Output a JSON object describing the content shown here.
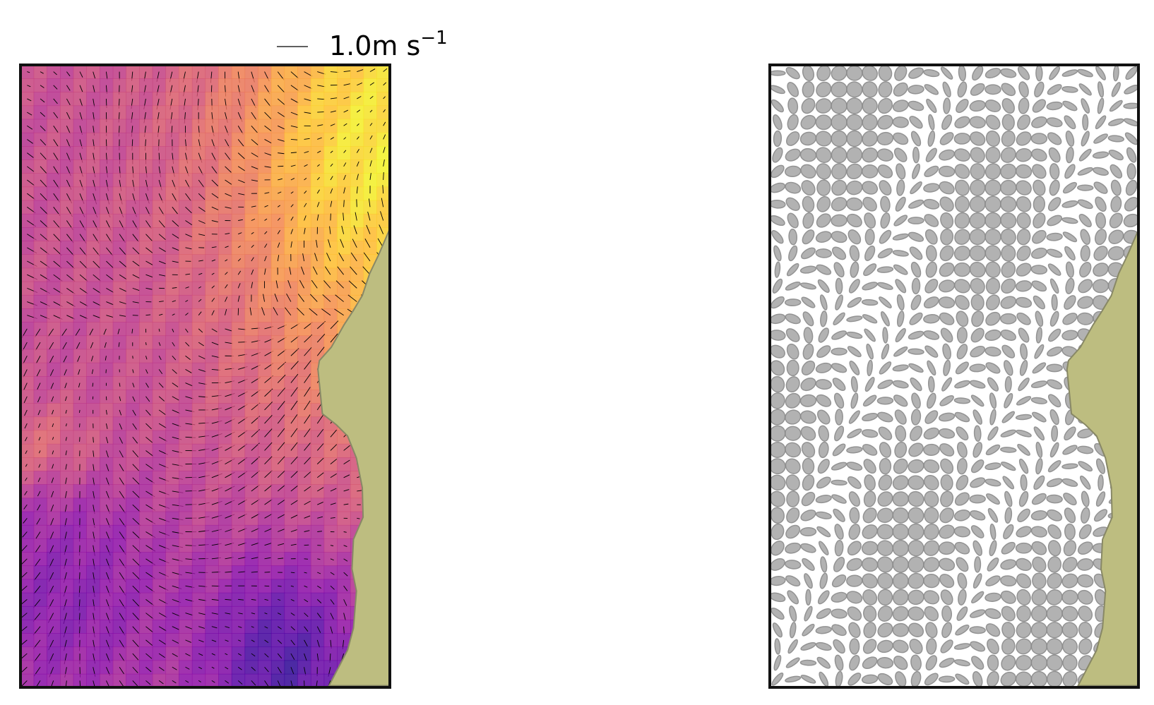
{
  "quiver_key": {
    "label": "1.0m s",
    "exponent": "−1"
  }
}
